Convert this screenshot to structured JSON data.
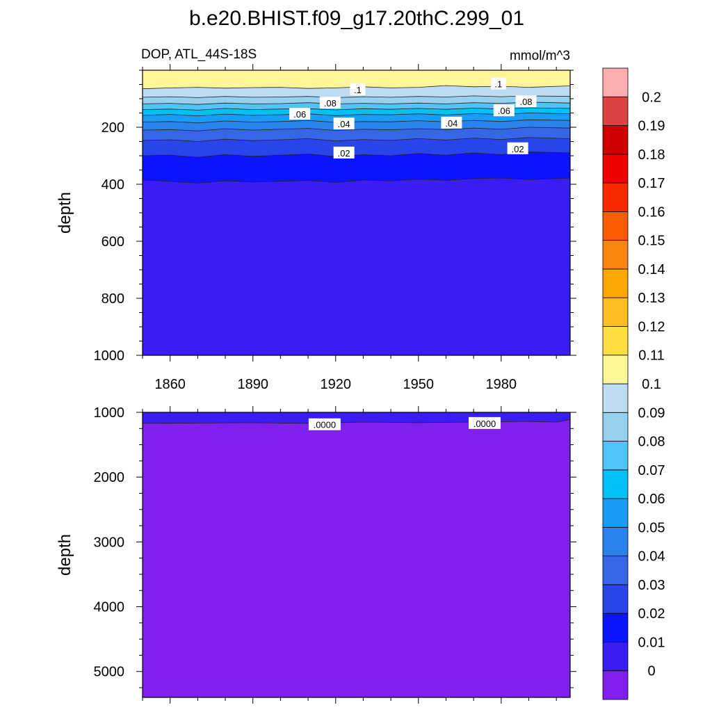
{
  "title": "b.e20.BHIST.f09_g17.20thC.299_01",
  "subtitle_left": "DOP, ATL_44S-18S",
  "subtitle_right": "mmol/m^3",
  "colorbar": {
    "levels": [
      "0",
      "0.01",
      "0.02",
      "0.03",
      "0.04",
      "0.05",
      "0.06",
      "0.07",
      "0.08",
      "0.09",
      "0.1",
      "0.11",
      "0.12",
      "0.13",
      "0.14",
      "0.15",
      "0.16",
      "0.17",
      "0.18",
      "0.19",
      "0.2"
    ],
    "colors": [
      "#8020f0",
      "#3a1cf5",
      "#0c14ff",
      "#2a44ec",
      "#3666e6",
      "#2a82ee",
      "#1a9cf6",
      "#00c0f8",
      "#50c4f6",
      "#98d0ee",
      "#bcdcf2",
      "#fff69a",
      "#ffde40",
      "#fcbe20",
      "#fca800",
      "#fc8410",
      "#fc5c00",
      "#fc2800",
      "#ec0000",
      "#d00000",
      "#dc4444",
      "#fcaeae"
    ]
  },
  "chart_data": [
    {
      "type": "contour",
      "xlabel": "",
      "ylabel": "depth",
      "xlim": [
        1850,
        2005
      ],
      "ylim": [
        1000,
        0
      ],
      "x_ticks": [
        "1860",
        "1890",
        "1920",
        "1950",
        "1980"
      ],
      "x_tick_values": [
        1860,
        1890,
        1920,
        1950,
        1980
      ],
      "y_ticks": [
        "200",
        "400",
        "600",
        "800",
        "1000"
      ],
      "y_tick_values": [
        200,
        400,
        600,
        800,
        1000
      ],
      "x": [
        1850,
        1860,
        1870,
        1880,
        1890,
        1900,
        1910,
        1920,
        1930,
        1940,
        1950,
        1960,
        1970,
        1980,
        1990,
        2005
      ],
      "contours": [
        {
          "level": 0.1,
          "depth": [
            65,
            62,
            60,
            63,
            61,
            60,
            64,
            62,
            58,
            62,
            60,
            54,
            58,
            56,
            60,
            55
          ]
        },
        {
          "level": 0.09,
          "depth": [
            95,
            93,
            96,
            92,
            95,
            94,
            92,
            96,
            93,
            95,
            92,
            94,
            90,
            93,
            90,
            92
          ]
        },
        {
          "level": 0.08,
          "depth": [
            118,
            116,
            120,
            115,
            118,
            117,
            114,
            118,
            116,
            118,
            115,
            118,
            114,
            116,
            112,
            115
          ]
        },
        {
          "level": 0.07,
          "depth": [
            138,
            136,
            140,
            134,
            138,
            136,
            135,
            139,
            135,
            137,
            134,
            137,
            133,
            136,
            132,
            134
          ]
        },
        {
          "level": 0.06,
          "depth": [
            158,
            155,
            160,
            154,
            158,
            156,
            153,
            159,
            155,
            156,
            153,
            157,
            152,
            155,
            150,
            153
          ]
        },
        {
          "level": 0.05,
          "depth": [
            182,
            180,
            185,
            178,
            182,
            180,
            176,
            183,
            180,
            181,
            177,
            181,
            176,
            180,
            174,
            176
          ]
        },
        {
          "level": 0.04,
          "depth": [
            210,
            208,
            213,
            205,
            210,
            207,
            204,
            211,
            207,
            209,
            205,
            208,
            203,
            207,
            200,
            203
          ]
        },
        {
          "level": 0.03,
          "depth": [
            246,
            244,
            250,
            242,
            247,
            244,
            240,
            248,
            243,
            246,
            240,
            245,
            238,
            243,
            236,
            240
          ]
        },
        {
          "level": 0.02,
          "depth": [
            300,
            298,
            305,
            296,
            302,
            298,
            294,
            303,
            296,
            300,
            292,
            298,
            290,
            296,
            286,
            290
          ]
        },
        {
          "level": 0.01,
          "depth": [
            385,
            390,
            396,
            388,
            392,
            390,
            386,
            394,
            385,
            388,
            382,
            386,
            380,
            378,
            384,
            378
          ]
        }
      ],
      "contour_labels": [
        {
          "text": ".1",
          "x": 1928,
          "depth": 68
        },
        {
          "text": ".1",
          "x": 1979,
          "depth": 48
        },
        {
          "text": ".08",
          "x": 1918,
          "depth": 115
        },
        {
          "text": ".08",
          "x": 1989,
          "depth": 110
        },
        {
          "text": ".06",
          "x": 1907,
          "depth": 154
        },
        {
          "text": ".06",
          "x": 1981,
          "depth": 142
        },
        {
          "text": ".04",
          "x": 1923,
          "depth": 188
        },
        {
          "text": ".04",
          "x": 1962,
          "depth": 185
        },
        {
          "text": ".02",
          "x": 1923,
          "depth": 290
        },
        {
          "text": ".02",
          "x": 1986,
          "depth": 275
        }
      ]
    },
    {
      "type": "contour",
      "xlabel": "",
      "ylabel": "depth",
      "xlim": [
        1850,
        2005
      ],
      "ylim": [
        5400,
        1000
      ],
      "y_ticks": [
        "1000",
        "2000",
        "3000",
        "4000",
        "5000"
      ],
      "y_tick_values": [
        1000,
        2000,
        3000,
        4000,
        5000
      ],
      "x": [
        1850,
        1870,
        1890,
        1910,
        1930,
        1950,
        1970,
        1990,
        2000,
        2005
      ],
      "contours": [
        {
          "level": 0.0,
          "depth": [
            1170,
            1165,
            1160,
            1170,
            1150,
            1160,
            1150,
            1140,
            1150,
            1110
          ]
        }
      ],
      "contour_labels": [
        {
          "text": ".0000",
          "x": 1916,
          "depth": 1190
        },
        {
          "text": ".0000",
          "x": 1974,
          "depth": 1170
        }
      ]
    }
  ]
}
